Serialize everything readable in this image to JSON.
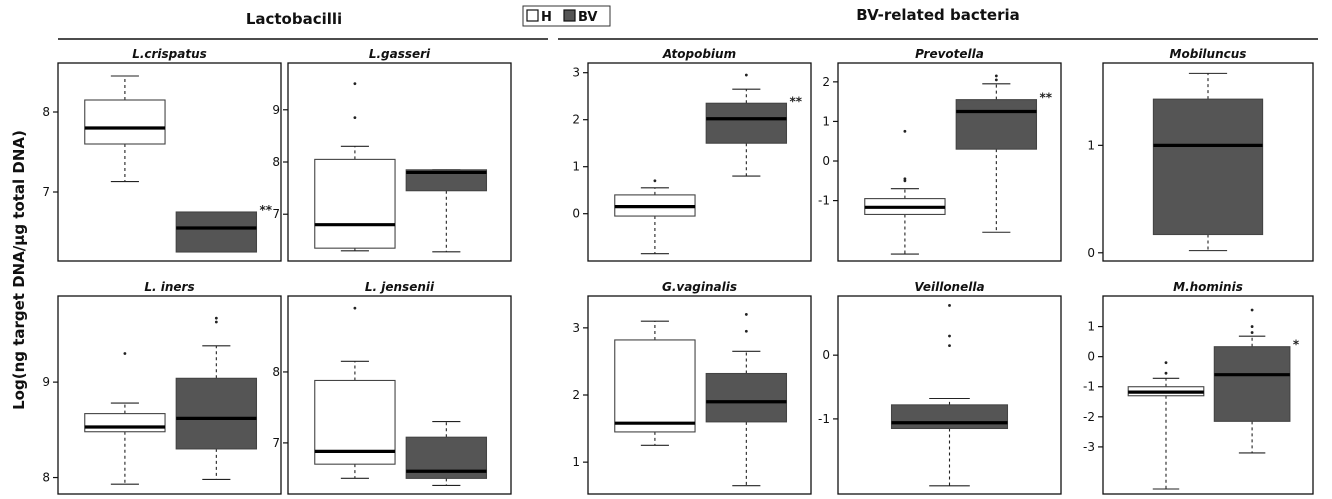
{
  "figure": {
    "group_labels": [
      "Lactobacilli",
      "BV-related bacteria"
    ],
    "legend": [
      {
        "label": "H",
        "color": "#ffffff"
      },
      {
        "label": "BV",
        "color": "#555555"
      }
    ],
    "ylabel": "Log(ng target DNA/µg total DNA)"
  },
  "chart_data": [
    {
      "type": "box",
      "title": "L.crispatus",
      "yticks": [
        7,
        8
      ],
      "ylim": [
        6.2,
        8.55
      ],
      "significance": "**",
      "groups": [
        {
          "name": "H",
          "whisker_low": 7.13,
          "q1": 7.6,
          "median": 7.8,
          "q3": 8.15,
          "whisker_high": 8.45,
          "outliers": []
        },
        {
          "name": "BV",
          "whisker_low": 6.25,
          "q1": 6.25,
          "median": 6.55,
          "q3": 6.75,
          "whisker_high": 6.75,
          "outliers": []
        }
      ]
    },
    {
      "type": "box",
      "title": "L.gasseri",
      "yticks": [
        7,
        8,
        9
      ],
      "ylim": [
        6.2,
        9.8
      ],
      "significance": "",
      "groups": [
        {
          "name": "H",
          "whisker_low": 6.3,
          "q1": 6.35,
          "median": 6.8,
          "q3": 8.05,
          "whisker_high": 8.3,
          "outliers": [
            8.85,
            9.5
          ]
        },
        {
          "name": "BV",
          "whisker_low": 6.28,
          "q1": 7.45,
          "median": 7.8,
          "q3": 7.85,
          "whisker_high": 7.85,
          "outliers": []
        }
      ]
    },
    {
      "type": "box",
      "title": "Atopobium",
      "yticks": [
        0,
        1,
        2,
        3
      ],
      "ylim": [
        -0.9,
        3.1
      ],
      "significance": "**",
      "groups": [
        {
          "name": "H",
          "whisker_low": -0.85,
          "q1": -0.05,
          "median": 0.15,
          "q3": 0.4,
          "whisker_high": 0.55,
          "outliers": [
            0.7
          ]
        },
        {
          "name": "BV",
          "whisker_low": 0.8,
          "q1": 1.5,
          "median": 2.02,
          "q3": 2.35,
          "whisker_high": 2.65,
          "outliers": [
            2.95
          ]
        }
      ]
    },
    {
      "type": "box",
      "title": "Prevotella",
      "yticks": [
        -1,
        0,
        1,
        2
      ],
      "ylim": [
        -2.4,
        2.35
      ],
      "significance": "**",
      "groups": [
        {
          "name": "H",
          "whisker_low": -2.35,
          "q1": -1.35,
          "median": -1.17,
          "q3": -0.95,
          "whisker_high": -0.7,
          "outliers": [
            -0.5,
            -0.45,
            0.75
          ]
        },
        {
          "name": "BV",
          "whisker_low": -1.8,
          "q1": 0.3,
          "median": 1.25,
          "q3": 1.55,
          "whisker_high": 1.95,
          "outliers": [
            2.05,
            2.15
          ]
        }
      ]
    },
    {
      "type": "box",
      "title": "Mobiluncus",
      "yticks": [
        0,
        1
      ],
      "ylim": [
        -0.03,
        1.72
      ],
      "significance": "",
      "groups": [
        {
          "name": "BV",
          "whisker_low": 0.02,
          "q1": 0.17,
          "median": 1.0,
          "q3": 1.43,
          "whisker_high": 1.67,
          "outliers": []
        }
      ]
    },
    {
      "type": "box",
      "title": "L. iners",
      "yticks": [
        8,
        9
      ],
      "ylim": [
        7.88,
        9.85
      ],
      "significance": "",
      "groups": [
        {
          "name": "H",
          "whisker_low": 7.93,
          "q1": 8.48,
          "median": 8.53,
          "q3": 8.67,
          "whisker_high": 8.78,
          "outliers": [
            9.3
          ]
        },
        {
          "name": "BV",
          "whisker_low": 7.98,
          "q1": 8.3,
          "median": 8.62,
          "q3": 9.04,
          "whisker_high": 9.38,
          "outliers": [
            9.63,
            9.67
          ]
        }
      ]
    },
    {
      "type": "box",
      "title": "L. jensenii",
      "yticks": [
        7,
        8
      ],
      "ylim": [
        6.35,
        9.0
      ],
      "significance": "",
      "groups": [
        {
          "name": "H",
          "whisker_low": 6.5,
          "q1": 6.7,
          "median": 6.88,
          "q3": 7.88,
          "whisker_high": 8.15,
          "outliers": [
            8.9
          ]
        },
        {
          "name": "BV",
          "whisker_low": 6.4,
          "q1": 6.5,
          "median": 6.6,
          "q3": 7.08,
          "whisker_high": 7.3,
          "outliers": []
        }
      ]
    },
    {
      "type": "box",
      "title": "G.vaginalis",
      "yticks": [
        1,
        2,
        3
      ],
      "ylim": [
        0.6,
        3.4
      ],
      "significance": "",
      "groups": [
        {
          "name": "H",
          "whisker_low": 1.25,
          "q1": 1.45,
          "median": 1.58,
          "q3": 2.82,
          "whisker_high": 3.1,
          "outliers": []
        },
        {
          "name": "BV",
          "whisker_low": 0.65,
          "q1": 1.6,
          "median": 1.9,
          "q3": 2.32,
          "whisker_high": 2.65,
          "outliers": [
            2.95,
            3.2
          ]
        }
      ]
    },
    {
      "type": "box",
      "title": "Veillonella",
      "yticks": [
        -1,
        0
      ],
      "ylim": [
        -2.1,
        0.85
      ],
      "significance": "",
      "groups": [
        {
          "name": "BV",
          "whisker_low": -2.05,
          "q1": -1.15,
          "median": -1.06,
          "q3": -0.78,
          "whisker_high": -0.68,
          "outliers": [
            0.15,
            0.3,
            0.78
          ]
        }
      ]
    },
    {
      "type": "box",
      "title": "M.hominis",
      "yticks": [
        -3,
        -2,
        -1,
        0,
        1
      ],
      "ylim": [
        -4.4,
        1.85
      ],
      "significance": "*",
      "groups": [
        {
          "name": "H",
          "whisker_low": -4.4,
          "q1": -1.3,
          "median": -1.18,
          "q3": -1.0,
          "whisker_high": -0.72,
          "outliers": [
            -0.55,
            -0.2
          ]
        },
        {
          "name": "BV",
          "whisker_low": -3.2,
          "q1": -2.15,
          "median": -0.6,
          "q3": 0.33,
          "whisker_high": 0.68,
          "outliers": [
            0.8,
            1.0,
            1.55
          ]
        }
      ]
    }
  ]
}
